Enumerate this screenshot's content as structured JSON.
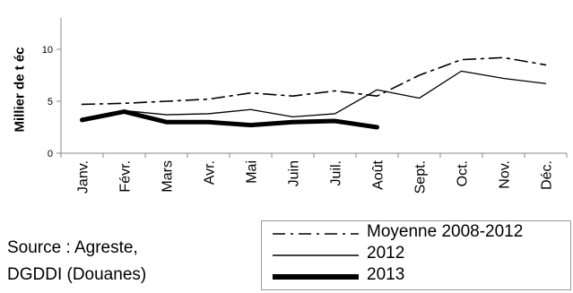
{
  "chart_data": {
    "type": "line",
    "ylabel": "Millier de t éc",
    "ylim": [
      0,
      10
    ],
    "yticks": [
      "0",
      "5",
      "10"
    ],
    "categories": [
      "Janv.",
      "Févr.",
      "Mars",
      "Avr.",
      "Mai",
      "Juin",
      "Juil.",
      "Août",
      "Sept.",
      "Oct.",
      "Nov.",
      "Déc."
    ],
    "grid": false,
    "legend_position": "bottom-right",
    "series": [
      {
        "name": "Moyenne 2008-2012",
        "style": "dash-dot",
        "color": "#000000",
        "values": [
          4.7,
          4.8,
          5.0,
          5.2,
          5.8,
          5.5,
          6.0,
          5.5,
          7.5,
          9.0,
          9.2,
          8.5
        ]
      },
      {
        "name": "2012",
        "style": "thin",
        "color": "#000000",
        "values": [
          3.3,
          4.1,
          3.7,
          3.8,
          4.2,
          3.5,
          3.8,
          6.1,
          5.3,
          7.9,
          7.2,
          6.7
        ]
      },
      {
        "name": "2013",
        "style": "thick",
        "color": "#000000",
        "values": [
          3.2,
          4.0,
          3.0,
          3.0,
          2.7,
          3.0,
          3.1,
          2.5,
          null,
          null,
          null,
          null
        ]
      }
    ]
  },
  "source": {
    "line1": "Source : Agreste,",
    "line2": "DGDDI (Douanes)"
  }
}
